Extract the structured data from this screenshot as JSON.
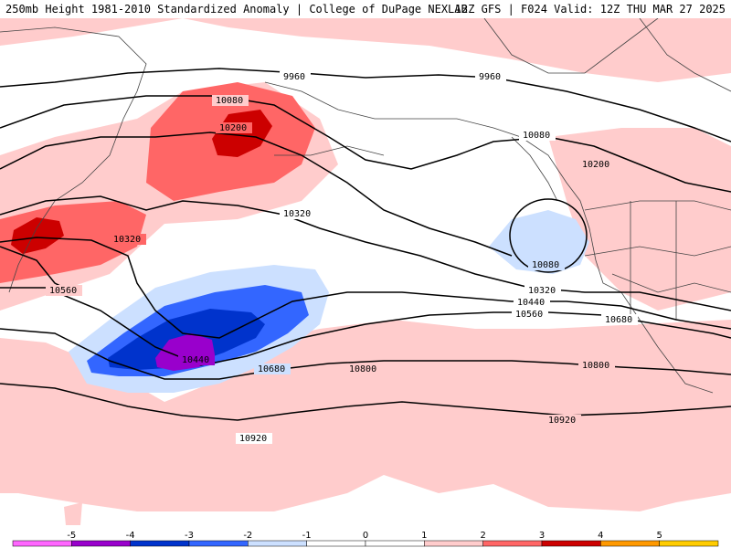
{
  "header": {
    "left_title": "250mb Height 1981-2010 Standardized Anomaly | College of DuPage NEXLAB",
    "right_title": "12Z GFS | F024 Valid: 12Z THU MAR 27 2025"
  },
  "contour_labels": [
    "9960",
    "9960",
    "10080",
    "10080",
    "10200",
    "10200",
    "10320",
    "10320",
    "10320",
    "10440",
    "10440",
    "10560",
    "10560",
    "10680",
    "10680",
    "10800",
    "10800",
    "10920",
    "10920",
    "10080"
  ],
  "colorbar": {
    "ticks": [
      "-5",
      "-4",
      "-3",
      "-2",
      "-1",
      "0",
      "1",
      "2",
      "3",
      "4",
      "5"
    ],
    "colors": [
      "#ff66ff",
      "#9900cc",
      "#0033cc",
      "#3366ff",
      "#cce0ff",
      "#ffffff",
      "#ffffff",
      "#ffcccc",
      "#ff6666",
      "#cc0000",
      "#ff9900",
      "#ffcc00"
    ]
  },
  "anomaly_palette": {
    "neg_light": "#cce0ff",
    "neg_mid": "#3366ff",
    "neg_dark": "#0033cc",
    "neg_extreme": "#9900cc",
    "pos_light": "#ffcccc",
    "pos_mid": "#ff6666",
    "pos_dark": "#cc0000"
  }
}
